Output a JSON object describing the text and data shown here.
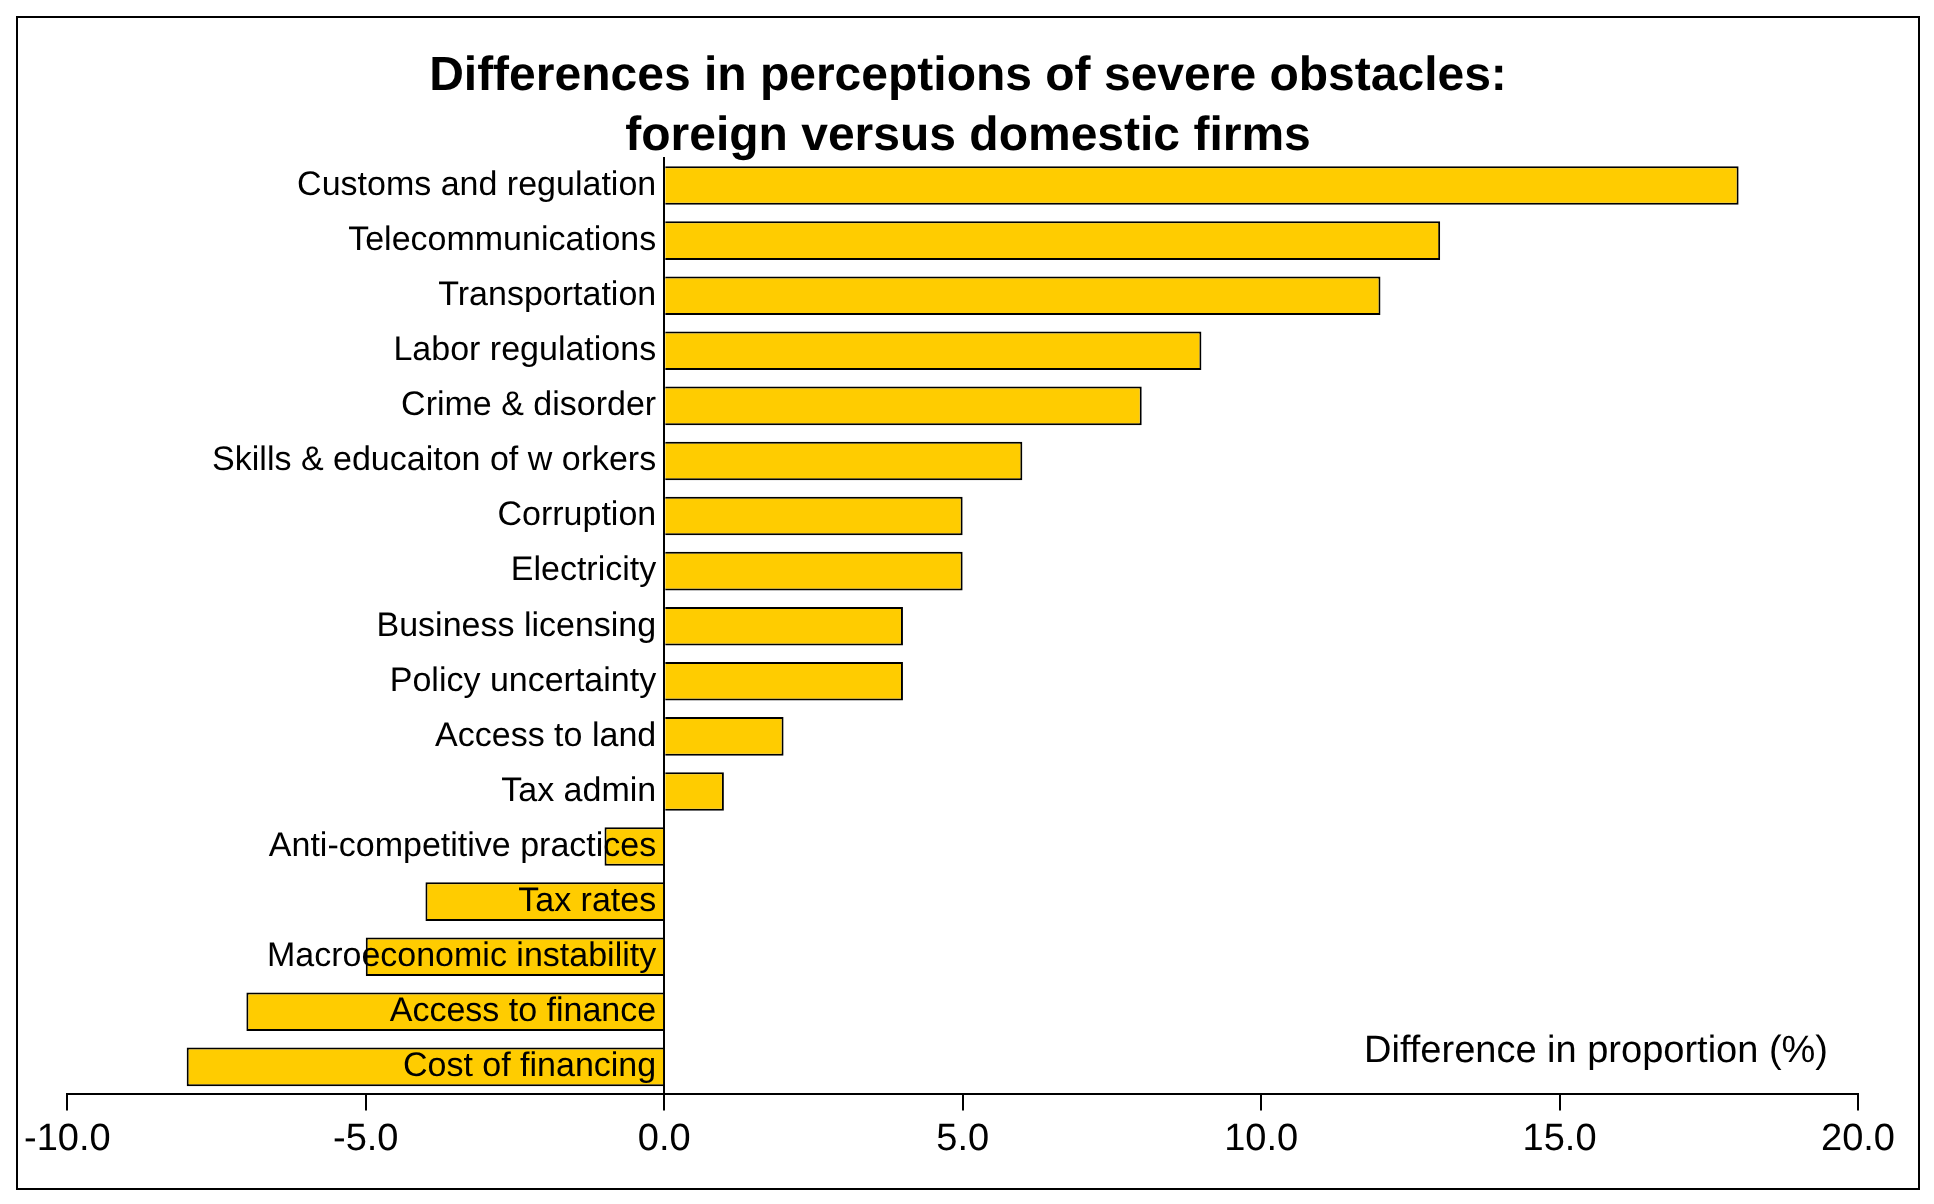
{
  "chart_data": {
    "type": "bar",
    "orientation": "horizontal",
    "title": "Differences in perceptions of severe obstacles: foreign versus domestic firms",
    "xlabel": "Difference in proportion (%)",
    "categories": [
      "Customs and regulation",
      "Telecommunications",
      "Transportation",
      "Labor regulations",
      "Crime & disorder",
      "Skills & educaiton of w orkers",
      "Corruption",
      "Electricity",
      "Business licensing",
      "Policy uncertainty",
      "Access to land",
      "Tax admin",
      "Anti-competitive practices",
      "Tax rates",
      "Macroeconomic instability",
      "Access to finance",
      "Cost of financing"
    ],
    "values": [
      18,
      13,
      12,
      9,
      8,
      6,
      5,
      5,
      4,
      4,
      2,
      1,
      -1,
      -4,
      -5,
      -7,
      -8
    ],
    "color": "#ffcc00",
    "xlim": [
      -10,
      20
    ],
    "xticks": [
      {
        "value": -10,
        "label": "-10.0"
      },
      {
        "value": -5,
        "label": "-5.0"
      },
      {
        "value": 0,
        "label": "0.0"
      },
      {
        "value": 5,
        "label": "5.0"
      },
      {
        "value": 10,
        "label": "10.0"
      },
      {
        "value": 15,
        "label": "15.0"
      },
      {
        "value": 20,
        "label": "20.0"
      }
    ],
    "grid": false,
    "legend": false
  }
}
